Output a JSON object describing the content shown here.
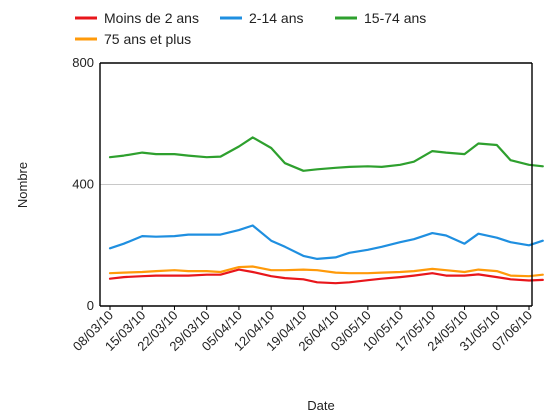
{
  "chart_data": {
    "type": "line",
    "xlabel": "Date",
    "ylabel": "Nombre",
    "ylim": [
      0,
      800
    ],
    "yticks": [
      0,
      400,
      800
    ],
    "grid": "horizontal",
    "legend_position": "top",
    "x_tick_labels": [
      "08/03/10",
      "15/03/10",
      "22/03/10",
      "29/03/10",
      "05/04/10",
      "12/04/10",
      "19/04/10",
      "26/04/10",
      "03/05/10",
      "10/05/10",
      "17/05/10",
      "24/05/10",
      "31/05/10",
      "07/06/10"
    ],
    "x_tick_dates": [
      "2010-03-08",
      "2010-03-15",
      "2010-03-22",
      "2010-03-29",
      "2010-04-05",
      "2010-04-12",
      "2010-04-19",
      "2010-04-26",
      "2010-05-03",
      "2010-05-10",
      "2010-05-17",
      "2010-05-24",
      "2010-05-31",
      "2010-06-07"
    ],
    "x": [
      "2010-03-08",
      "2010-03-11",
      "2010-03-15",
      "2010-03-18",
      "2010-03-22",
      "2010-03-25",
      "2010-03-29",
      "2010-04-01",
      "2010-04-05",
      "2010-04-08",
      "2010-04-12",
      "2010-04-15",
      "2010-04-19",
      "2010-04-22",
      "2010-04-26",
      "2010-04-29",
      "2010-05-03",
      "2010-05-06",
      "2010-05-10",
      "2010-05-13",
      "2010-05-17",
      "2010-05-20",
      "2010-05-24",
      "2010-05-27",
      "2010-05-31",
      "2010-06-03",
      "2010-06-07",
      "2010-06-10"
    ],
    "series": [
      {
        "name": "Moins de 2 ans",
        "color": "#e8161b",
        "values": [
          90,
          95,
          98,
          100,
          100,
          100,
          103,
          103,
          120,
          112,
          98,
          92,
          88,
          78,
          75,
          78,
          85,
          90,
          95,
          100,
          108,
          100,
          100,
          104,
          95,
          88,
          84,
          86
        ]
      },
      {
        "name": "2-14 ans",
        "color": "#1f8fe0",
        "values": [
          190,
          205,
          230,
          228,
          230,
          235,
          235,
          235,
          250,
          265,
          215,
          195,
          165,
          155,
          160,
          175,
          185,
          195,
          210,
          220,
          240,
          232,
          205,
          238,
          225,
          210,
          200,
          215
        ]
      },
      {
        "name": "15-74 ans",
        "color": "#2ea02e",
        "values": [
          490,
          495,
          505,
          500,
          500,
          495,
          490,
          492,
          525,
          555,
          520,
          470,
          445,
          450,
          455,
          458,
          460,
          458,
          465,
          475,
          510,
          505,
          500,
          535,
          530,
          480,
          465,
          460
        ]
      },
      {
        "name": "75 ans et plus",
        "color": "#ff9a0a",
        "values": [
          108,
          110,
          112,
          115,
          118,
          115,
          115,
          112,
          128,
          130,
          118,
          118,
          120,
          118,
          110,
          108,
          108,
          110,
          112,
          115,
          122,
          118,
          112,
          120,
          115,
          100,
          98,
          103
        ]
      }
    ]
  }
}
